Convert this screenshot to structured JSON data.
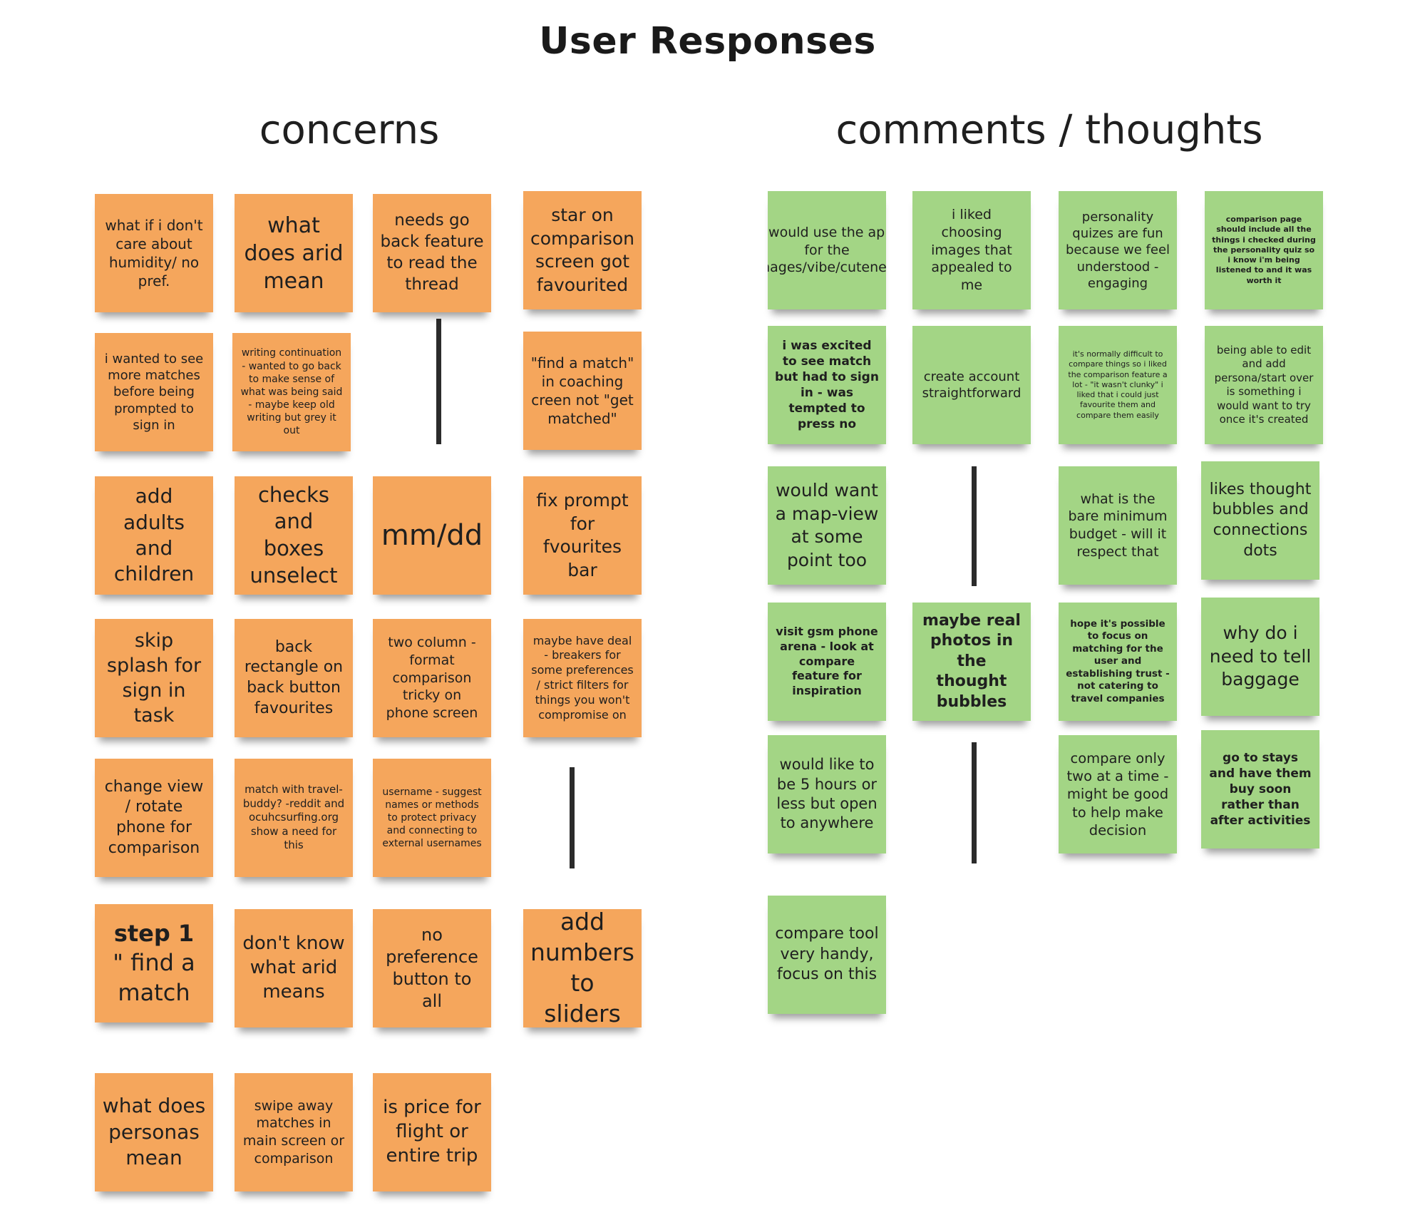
{
  "board": {
    "title": "User Responses",
    "concerns_heading": "concerns",
    "comments_heading": "comments / thoughts"
  },
  "concerns": [
    {
      "text": "what if i don't care about humidity/ no pref."
    },
    {
      "text": "what does arid mean"
    },
    {
      "text": "needs go back feature to read the thread"
    },
    {
      "text": "star on comparison screen got favourited"
    },
    {
      "text": "i wanted to see more matches before being prompted to sign in"
    },
    {
      "text": "writing continuation - wanted to go back to make sense of what was being said - maybe keep old writing but grey it out"
    },
    {
      "text": "\"find a match\" in coaching creen not \"get matched\""
    },
    {
      "text": "add adults and children"
    },
    {
      "text": "checks and boxes unselect"
    },
    {
      "text": "mm/dd"
    },
    {
      "text": "fix prompt for fvourites bar"
    },
    {
      "text": "skip splash for sign in task"
    },
    {
      "text": "back rectangle on back button favourites"
    },
    {
      "text": "two column - format comparison tricky on phone screen"
    },
    {
      "text": "maybe have deal - breakers for some preferences / strict filters for things you won't compromise on"
    },
    {
      "text": "change view / rotate phone for comparison"
    },
    {
      "text": "match with travel-buddy? -reddit and ocuhcsurfing.org show a need for this"
    },
    {
      "text": "username - suggest names or methods to protect privacy and connecting to external usernames"
    },
    {
      "text_bold": "step 1",
      "text": "\" find a match"
    },
    {
      "text": "don't know what arid means"
    },
    {
      "text": "no preference button to all"
    },
    {
      "text": "add numbers to sliders"
    },
    {
      "text": "what does personas mean"
    },
    {
      "text": "swipe away matches in main screen or comparison"
    },
    {
      "text": "is price for flight or entire trip"
    }
  ],
  "comments": [
    {
      "text": "i would use the app for the images/vibe/cuteness"
    },
    {
      "text": "i liked choosing images that appealed to me"
    },
    {
      "text": "personality quizes are fun because we feel understood - engaging"
    },
    {
      "text": "comparison page should include all the things i checked during the personality quiz so i know i'm being listened to and it was worth it"
    },
    {
      "text": "i was excited to see match but had to sign in - was tempted to press no"
    },
    {
      "text": "create account straightforward"
    },
    {
      "text": "it's normally difficult to compare things so i liked the comparison feature a lot - \"it wasn't clunky\" i liked that i could just favourite them and compare them easily"
    },
    {
      "text": "being able to edit and add persona/start over is something i would want to try once it's created"
    },
    {
      "text": "would want a map-view at some point too"
    },
    {
      "text": "what is the bare minimum budget - will it respect that"
    },
    {
      "text": "likes thought bubbles and connections dots"
    },
    {
      "text": "visit gsm phone arena - look at compare feature for inspiration"
    },
    {
      "text": "maybe real photos in the thought bubbles"
    },
    {
      "text": "hope it's possible to focus on matching for the user and establishing trust - not catering to travel companies"
    },
    {
      "text": "why do i need to tell baggage"
    },
    {
      "text": "would like to be 5 hours or less but open to anywhere"
    },
    {
      "text": "compare only two at a time - might be good to help make decision"
    },
    {
      "text": "go to stays and have them buy soon rather than after activities"
    },
    {
      "text": "compare tool very handy, focus on this"
    }
  ],
  "colors": {
    "concern_note": "#f5a65c",
    "comment_note": "#a3d585",
    "connector": "#2b2b2b"
  }
}
